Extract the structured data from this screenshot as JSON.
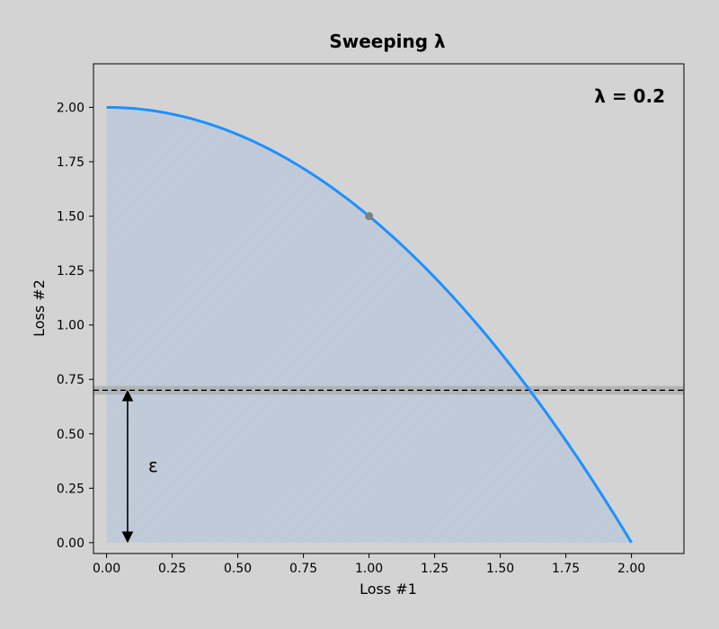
{
  "chart_data": {
    "type": "line",
    "title": "Sweeping λ",
    "xlabel": "Loss #1",
    "ylabel": "Loss #2",
    "xlim": [
      -0.05,
      2.2
    ],
    "ylim": [
      -0.05,
      2.2
    ],
    "xticks": [
      "0.00",
      "0.25",
      "0.50",
      "0.75",
      "1.00",
      "1.25",
      "1.50",
      "1.75",
      "2.00"
    ],
    "yticks": [
      "0.00",
      "0.25",
      "0.50",
      "0.75",
      "1.00",
      "1.25",
      "1.50",
      "1.75",
      "2.00"
    ],
    "grid": false,
    "series": [
      {
        "color": "#1e90ff",
        "equation": "y = 2 - x^2/2",
        "x": [
          0.0,
          0.25,
          0.5,
          0.75,
          1.0,
          1.25,
          1.5,
          1.61,
          1.75,
          2.0
        ],
        "y": [
          2.0,
          1.97,
          1.875,
          1.72,
          1.5,
          1.22,
          0.875,
          0.7,
          0.47,
          0.0
        ]
      }
    ],
    "highlight_point": {
      "x": 1.0,
      "y": 1.5,
      "color": "#808080"
    },
    "shaded_region": {
      "under_curve": true,
      "color": "#b0c4de"
    },
    "threshold": {
      "y": 0.7,
      "style": "dashed",
      "band_half_width": 0.02,
      "band_color": "#a9a9a9"
    },
    "arrow": {
      "x": 0.08,
      "y_from": 0.0,
      "y_to": 0.7
    },
    "annotations": {
      "lambda_text": "λ = 0.2",
      "epsilon_text": "ε"
    }
  }
}
